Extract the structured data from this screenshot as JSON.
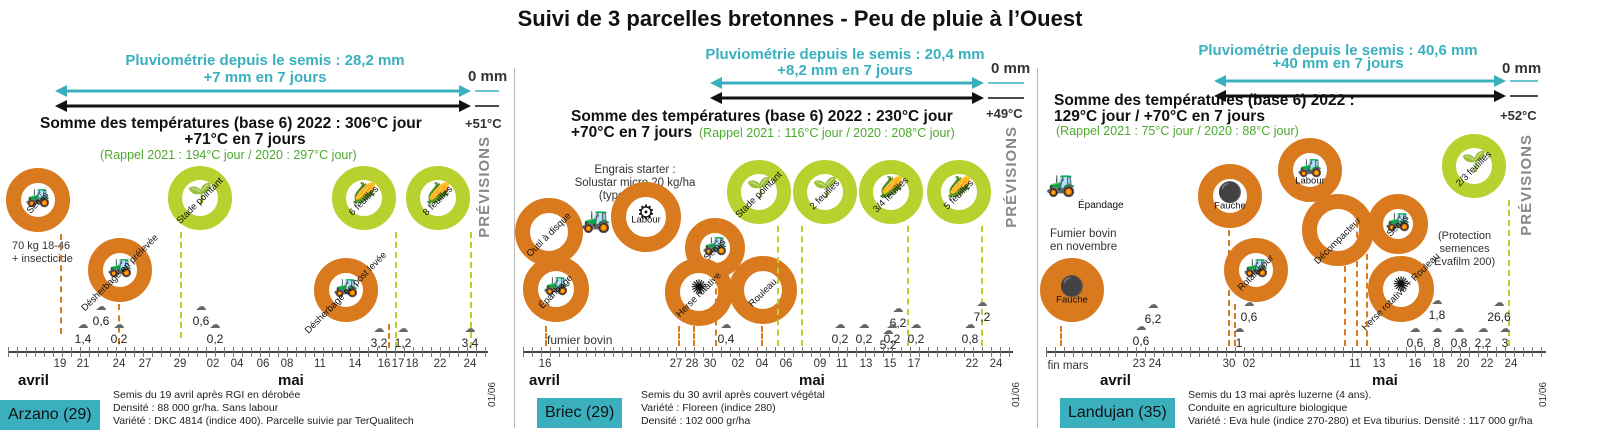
{
  "title": "Suivi de 3 parcelles bretonnes - Peu de pluie à l’Ouest",
  "colors": {
    "orange": "#d97a1f",
    "green": "#b9d12f",
    "teal": "#3ab0bf",
    "rappel": "#4caa2c"
  },
  "forecast": "PRÉVISIONS",
  "p1": {
    "rain1": "Pluviométrie depuis le semis : 28,2 mm",
    "rain2": "+7 mm en 7 jours",
    "zero": "0 mm",
    "temp1": "Somme des températures (base 6) 2022 : 306°C jour",
    "temp2": "+71°C en 7 jours",
    "rappel": "(Rappel 2021 : 194°C jour / 2020 : 297°C jour)",
    "fc": "+51°C",
    "note": "70 kg 18-46\n+ insecticide",
    "c_semis": "Semis",
    "c_desh1": "Désherbage\nen prélevée",
    "c_stade": "Stade pointant",
    "c_desh2": "Désherbage\nen post levée",
    "c_6f": "6 feuilles",
    "c_8f": "8 feuilles",
    "dates": [
      "19",
      "21",
      "24",
      "27",
      "29",
      "02",
      "04",
      "06",
      "08",
      "11",
      "14",
      "16",
      "17",
      "18",
      "22",
      "24",
      "01/06"
    ],
    "m1": "avril",
    "m2": "mai",
    "rain_vals": [
      "1,4",
      "0,6",
      "0,2",
      "0,6",
      "0,2",
      "3,2",
      "1,2",
      "3,4"
    ],
    "place": "Arzano (29)",
    "info": "Semis du 19 avril après RGI en dérobée\nDensité : 88 000 gr/ha. Sans labour\nVariété : DKC 4814 (indice 400). Parcelle suivie par TerQualitech"
  },
  "p2": {
    "rain1": "Pluviométrie depuis le semis : 20,4 mm",
    "rain2": "+8,2 mm en 7 jours",
    "zero": "0 mm",
    "temp1": "Somme des températures (base 6) 2022 : 230°C jour",
    "temp2": "+70°C en 7 jours",
    "rappel": "(Rappel 2021 : 116°C jour / 2020 : 208°C jour)",
    "fc": "+49°C",
    "note": "Engrais starter :\nSolustar micro 20 kg/ha\n(type 12-43-0)",
    "note2": "fumier bovin",
    "c_outil": "Outil à disque",
    "c_epand": "Épandage",
    "c_labour": "Labour",
    "c_herse": "Herse rotative",
    "c_semis": "Semis",
    "c_rouleau": "Rouleau",
    "c_stade": "Stade pointant",
    "c_2f": "2 feuilles",
    "c_34f": "3/4 feuilles",
    "c_5f": "5 feuilles",
    "dates": [
      "16",
      "27",
      "28",
      "30",
      "02",
      "04",
      "06",
      "09",
      "11",
      "13",
      "15",
      "17",
      "22",
      "24",
      "01/06"
    ],
    "m1": "avril",
    "m2": "mai",
    "rain_vals": [
      "0,4",
      "0,2",
      "0,2",
      "0,2",
      "6,2",
      "5,2",
      "0,2",
      "7,2",
      "0,8"
    ],
    "place": "Briec (29)",
    "info": "Semis du 30 avril après couvert végétal\nVariété : Floreen (indice 280)\nDensité : 102 000 gr/ha"
  },
  "p3": {
    "rain1": "Pluviométrie depuis le semis : 40,6 mm",
    "rain2": "+40 mm en 7 jours",
    "zero": "0 mm",
    "temp1": "Somme des températures (base 6) 2022 :",
    "temp2": "129°C jour / +70°C en 7 jours",
    "rappel": "(Rappel 2021 : 75°C jour / 2020 : 88°C jour)",
    "fc": "+52°C",
    "note": "Fumier bovin\nen novembre",
    "note2": "(Protection\nsemences\nEvafilm 200)",
    "c_epand": "Épandage",
    "c_fauche1": "Fauche",
    "c_fauche2": "Fauche",
    "c_labour": "Labour",
    "c_rotalabour": "Rotalabour",
    "c_decomp": "Décompacteur",
    "c_semis": "Semis",
    "c_herse": "Herse rotative\n+ Rouleau",
    "c_23f": "2/3 feuilles",
    "dates": [
      "fin mars",
      "23",
      "24",
      "30",
      "02",
      "11",
      "13",
      "16",
      "18",
      "20",
      "22",
      "24",
      "01/06"
    ],
    "m1": "avril",
    "m2": "mai",
    "rain_vals": [
      "0,6",
      "6,2",
      "1",
      "0,6",
      "0,6",
      "1,8",
      "0,8",
      "2,2",
      "3",
      "26,6",
      "8"
    ],
    "place": "Landujan (35)",
    "info": "Semis du 13 mai après luzerne (4 ans).\nConduite en agriculture biologique\nVariété : Eva hule (indice 270-280) et Eva tiburius. Densité : 117 000 gr/ha"
  }
}
